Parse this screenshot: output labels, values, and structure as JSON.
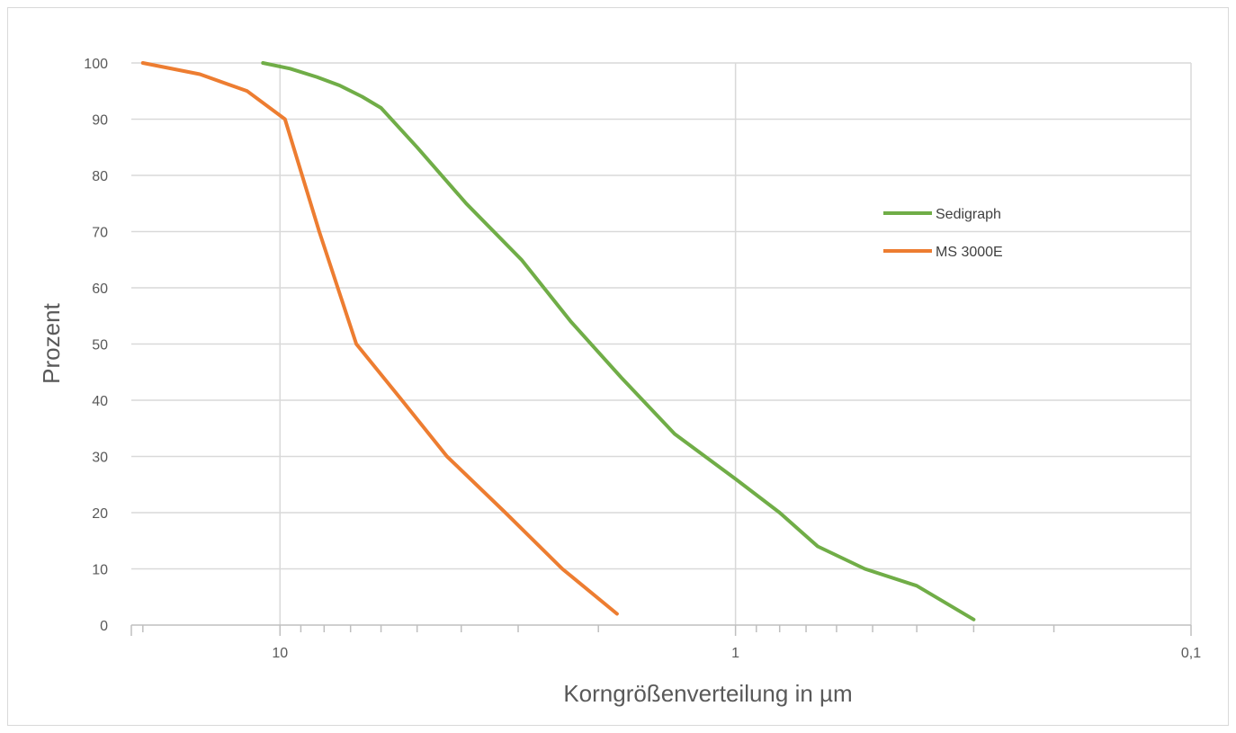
{
  "chart_data": {
    "type": "line",
    "title": "",
    "xlabel": "Korngrößenverteilung in µm",
    "ylabel": "Prozent",
    "x_scale": "log",
    "x_reversed": true,
    "xlim": [
      21.2,
      0.1
    ],
    "ylim": [
      0,
      100
    ],
    "y_ticks": [
      0,
      10,
      20,
      30,
      40,
      50,
      60,
      70,
      80,
      90,
      100
    ],
    "y_tick_labels": [
      "0",
      "10",
      "20",
      "30",
      "40",
      "50",
      "60",
      "70",
      "80",
      "90",
      "100"
    ],
    "x_major_ticks": [
      10,
      1,
      0.1
    ],
    "x_major_labels": [
      "10",
      "1",
      "0,1"
    ],
    "grid": true,
    "legend_position": "right",
    "series": [
      {
        "name": "Sedigraph",
        "color": "#70ad47",
        "x": [
          10.9,
          9.5,
          8.3,
          7.4,
          6.6,
          6.0,
          5.0,
          3.9,
          2.95,
          2.3,
          1.78,
          1.36,
          1.0,
          0.8,
          0.66,
          0.52,
          0.4,
          0.3
        ],
        "y": [
          100,
          99,
          97.5,
          96,
          94,
          92,
          85,
          75,
          65,
          54,
          44,
          34,
          26,
          20,
          14,
          10,
          7,
          1
        ]
      },
      {
        "name": "MS 3000E",
        "color": "#ed7d31",
        "x": [
          20,
          15,
          11.8,
          9.75,
          8.2,
          6.8,
          5.4,
          4.3,
          3.2,
          2.4,
          1.82
        ],
        "y": [
          100,
          98,
          95,
          90,
          70,
          50,
          40,
          30,
          20,
          10,
          2
        ]
      }
    ]
  }
}
